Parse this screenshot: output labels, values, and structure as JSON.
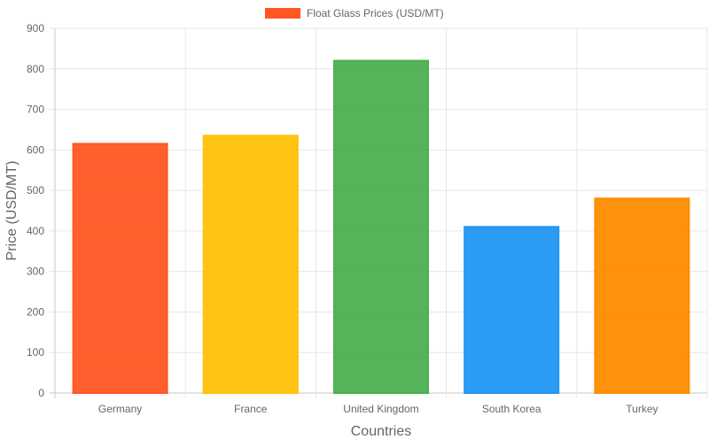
{
  "chart_data": {
    "type": "bar",
    "categories": [
      "Germany",
      "France",
      "United Kingdom",
      "South Korea",
      "Turkey"
    ],
    "series": [
      {
        "name": "Float Glass Prices (USD/MT)",
        "values": [
          615,
          635,
          820,
          410,
          480
        ],
        "colors": [
          "#FF5722",
          "#FFC107",
          "#4CAF50",
          "#2196F3",
          "#FF8C00"
        ]
      }
    ],
    "xlabel": "Countries",
    "ylabel": "Price (USD/MT)",
    "ylim": [
      0,
      900
    ],
    "yticks": [
      0,
      100,
      200,
      300,
      400,
      500,
      600,
      700,
      800,
      900
    ],
    "grid": true,
    "legend": {
      "placement": "top-center",
      "label": "Float Glass Prices (USD/MT)",
      "color": "#FF5722"
    }
  }
}
